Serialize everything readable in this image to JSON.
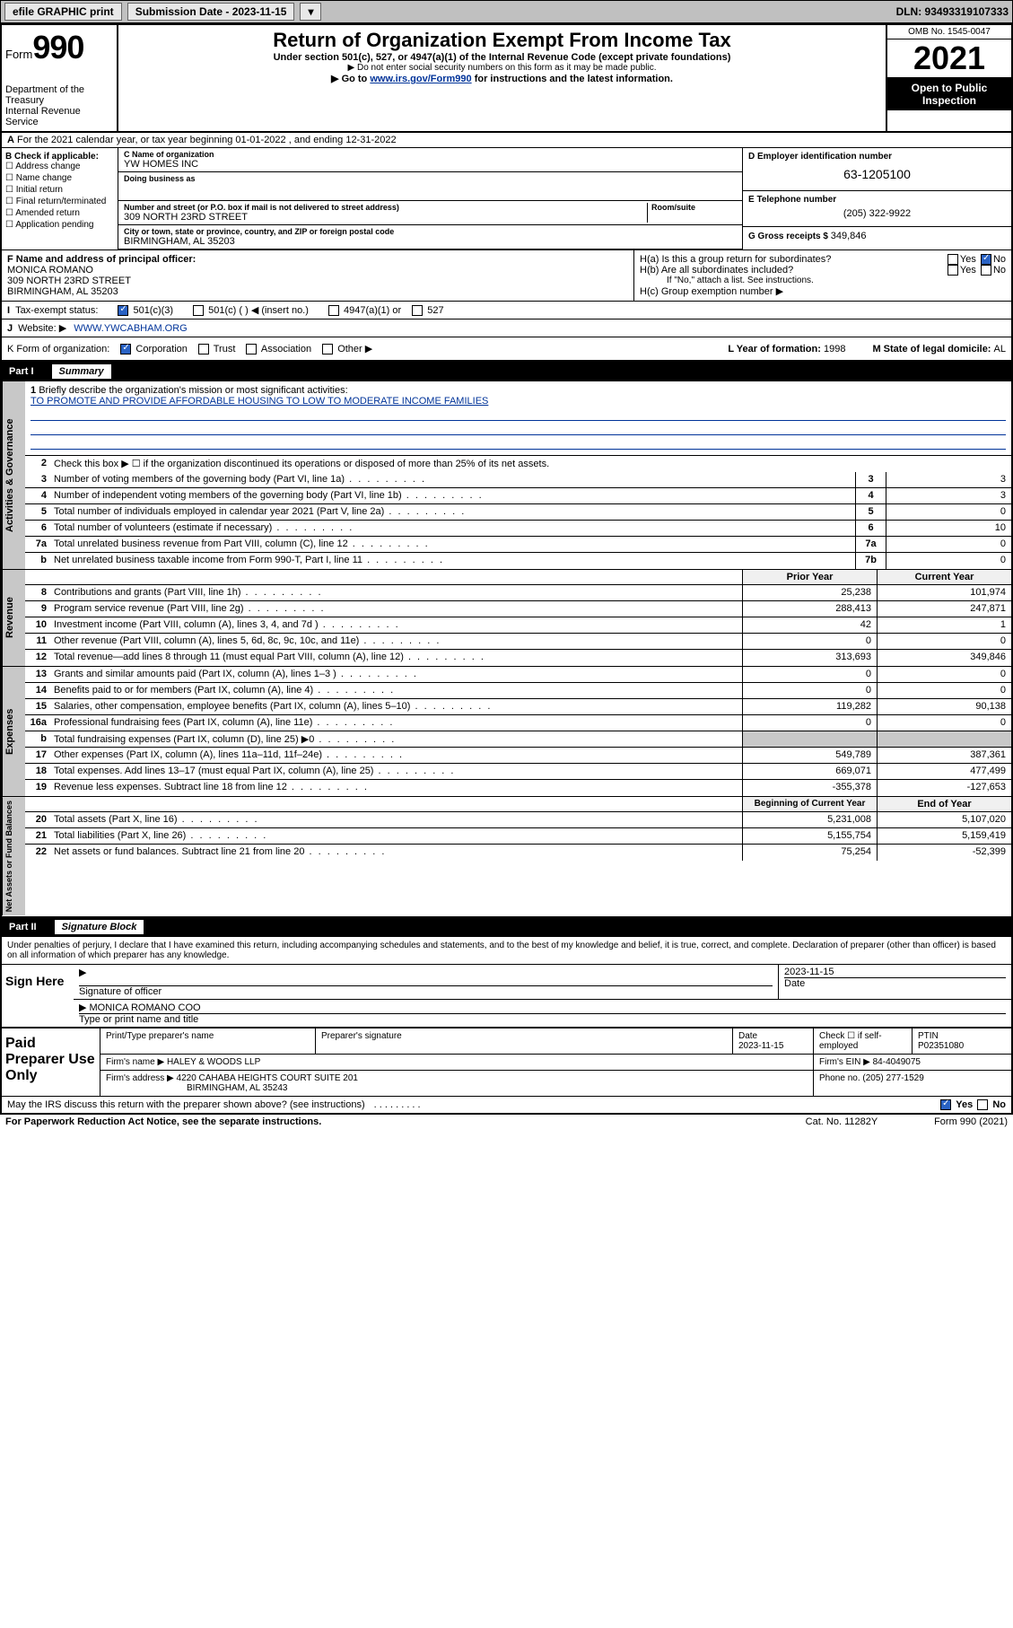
{
  "topbar": {
    "efile": "efile GRAPHIC print",
    "subdate_label": "Submission Date - 2023-11-15",
    "dln": "DLN: 93493319107333"
  },
  "header": {
    "form_prefix": "Form",
    "form_num": "990",
    "dept": "Department of the Treasury",
    "irs": "Internal Revenue Service",
    "title": "Return of Organization Exempt From Income Tax",
    "sub1": "Under section 501(c), 527, or 4947(a)(1) of the Internal Revenue Code (except private foundations)",
    "sub2": "▶ Do not enter social security numbers on this form as it may be made public.",
    "sub3_pre": "▶ Go to ",
    "sub3_link": "www.irs.gov/Form990",
    "sub3_post": " for instructions and the latest information.",
    "omb": "OMB No. 1545-0047",
    "year": "2021",
    "open": "Open to Public Inspection"
  },
  "rowA": "For the 2021 calendar year, or tax year beginning 01-01-2022    , and ending 12-31-2022",
  "sectionB": {
    "lbl": "B Check if applicable:",
    "items": [
      "Address change",
      "Name change",
      "Initial return",
      "Final return/terminated",
      "Amended return",
      "Application pending"
    ],
    "c_lbl": "C Name of organization",
    "c_name": "YW HOMES INC",
    "dba_lbl": "Doing business as",
    "addr_lbl": "Number and street (or P.O. box if mail is not delivered to street address)",
    "room_lbl": "Room/suite",
    "addr": "309 NORTH 23RD STREET",
    "city_lbl": "City or town, state or province, country, and ZIP or foreign postal code",
    "city": "BIRMINGHAM, AL  35203",
    "d_lbl": "D Employer identification number",
    "ein": "63-1205100",
    "e_lbl": "E Telephone number",
    "phone": "(205) 322-9922",
    "g_lbl": "G Gross receipts $ ",
    "g_val": "349,846"
  },
  "sectionF": {
    "lbl": "F  Name and address of principal officer:",
    "name": "MONICA ROMANO",
    "addr1": "309 NORTH 23RD STREET",
    "addr2": "BIRMINGHAM, AL  35203"
  },
  "sectionH": {
    "ha": "H(a)  Is this a group return for subordinates?",
    "hb": "H(b)  Are all subordinates included?",
    "hb_note": "If \"No,\" attach a list. See instructions.",
    "hc": "H(c)  Group exemption number ▶",
    "yes": "Yes",
    "no": "No"
  },
  "rowI": {
    "lbl": "Tax-exempt status:",
    "opts": [
      "501(c)(3)",
      "501(c) (  ) ◀ (insert no.)",
      "4947(a)(1) or",
      "527"
    ]
  },
  "rowJ": {
    "lbl": "Website: ▶",
    "val": "WWW.YWCABHAM.ORG"
  },
  "rowK": {
    "lbl": "K Form of organization:",
    "opts": [
      "Corporation",
      "Trust",
      "Association",
      "Other ▶"
    ],
    "l_lbl": "L Year of formation: ",
    "l_val": "1998",
    "m_lbl": "M State of legal domicile: ",
    "m_val": "AL"
  },
  "part1": {
    "label": "Part I",
    "title": "Summary"
  },
  "governance": {
    "side": "Activities & Governance",
    "l1": "Briefly describe the organization's mission or most significant activities:",
    "mission": "TO PROMOTE AND PROVIDE AFFORDABLE HOUSING TO LOW TO MODERATE INCOME FAMILIES",
    "l2": "Check this box ▶ ☐  if the organization discontinued its operations or disposed of more than 25% of its net assets.",
    "lines": [
      {
        "n": "3",
        "t": "Number of voting members of the governing body (Part VI, line 1a)",
        "box": "3",
        "v": "3"
      },
      {
        "n": "4",
        "t": "Number of independent voting members of the governing body (Part VI, line 1b)",
        "box": "4",
        "v": "3"
      },
      {
        "n": "5",
        "t": "Total number of individuals employed in calendar year 2021 (Part V, line 2a)",
        "box": "5",
        "v": "0"
      },
      {
        "n": "6",
        "t": "Total number of volunteers (estimate if necessary)",
        "box": "6",
        "v": "10"
      },
      {
        "n": "7a",
        "t": "Total unrelated business revenue from Part VIII, column (C), line 12",
        "box": "7a",
        "v": "0"
      },
      {
        "n": "b",
        "t": "Net unrelated business taxable income from Form 990-T, Part I, line 11",
        "box": "7b",
        "v": "0"
      }
    ]
  },
  "revenue": {
    "side": "Revenue",
    "h1": "Prior Year",
    "h2": "Current Year",
    "lines": [
      {
        "n": "8",
        "t": "Contributions and grants (Part VIII, line 1h)",
        "p": "25,238",
        "c": "101,974"
      },
      {
        "n": "9",
        "t": "Program service revenue (Part VIII, line 2g)",
        "p": "288,413",
        "c": "247,871"
      },
      {
        "n": "10",
        "t": "Investment income (Part VIII, column (A), lines 3, 4, and 7d )",
        "p": "42",
        "c": "1"
      },
      {
        "n": "11",
        "t": "Other revenue (Part VIII, column (A), lines 5, 6d, 8c, 9c, 10c, and 11e)",
        "p": "0",
        "c": "0"
      },
      {
        "n": "12",
        "t": "Total revenue—add lines 8 through 11 (must equal Part VIII, column (A), line 12)",
        "p": "313,693",
        "c": "349,846"
      }
    ]
  },
  "expenses": {
    "side": "Expenses",
    "lines": [
      {
        "n": "13",
        "t": "Grants and similar amounts paid (Part IX, column (A), lines 1–3 )",
        "p": "0",
        "c": "0"
      },
      {
        "n": "14",
        "t": "Benefits paid to or for members (Part IX, column (A), line 4)",
        "p": "0",
        "c": "0"
      },
      {
        "n": "15",
        "t": "Salaries, other compensation, employee benefits (Part IX, column (A), lines 5–10)",
        "p": "119,282",
        "c": "90,138"
      },
      {
        "n": "16a",
        "t": "Professional fundraising fees (Part IX, column (A), line 11e)",
        "p": "0",
        "c": "0"
      },
      {
        "n": "b",
        "t": "Total fundraising expenses (Part IX, column (D), line 25) ▶0",
        "p": "",
        "c": "",
        "gray": true
      },
      {
        "n": "17",
        "t": "Other expenses (Part IX, column (A), lines 11a–11d, 11f–24e)",
        "p": "549,789",
        "c": "387,361"
      },
      {
        "n": "18",
        "t": "Total expenses. Add lines 13–17 (must equal Part IX, column (A), line 25)",
        "p": "669,071",
        "c": "477,499"
      },
      {
        "n": "19",
        "t": "Revenue less expenses. Subtract line 18 from line 12",
        "p": "-355,378",
        "c": "-127,653"
      }
    ]
  },
  "netassets": {
    "side": "Net Assets or Fund Balances",
    "h1": "Beginning of Current Year",
    "h2": "End of Year",
    "lines": [
      {
        "n": "20",
        "t": "Total assets (Part X, line 16)",
        "p": "5,231,008",
        "c": "5,107,020"
      },
      {
        "n": "21",
        "t": "Total liabilities (Part X, line 26)",
        "p": "5,155,754",
        "c": "5,159,419"
      },
      {
        "n": "22",
        "t": "Net assets or fund balances. Subtract line 21 from line 20",
        "p": "75,254",
        "c": "-52,399"
      }
    ]
  },
  "part2": {
    "label": "Part II",
    "title": "Signature Block"
  },
  "sig": {
    "decl": "Under penalties of perjury, I declare that I have examined this return, including accompanying schedules and statements, and to the best of my knowledge and belief, it is true, correct, and complete. Declaration of preparer (other than officer) is based on all information of which preparer has any knowledge.",
    "sign_here": "Sign Here",
    "sig_officer": "Signature of officer",
    "date": "Date",
    "date_val": "2023-11-15",
    "name_title": "MONICA ROMANO  COO",
    "name_lbl": "Type or print name and title"
  },
  "paid": {
    "title": "Paid Preparer Use Only",
    "h1": "Print/Type preparer's name",
    "h2": "Preparer's signature",
    "h3": "Date",
    "date": "2023-11-15",
    "h4": "Check ☐ if self-employed",
    "h5": "PTIN",
    "ptin": "P02351080",
    "firm_lbl": "Firm's name     ▶",
    "firm": "HALEY & WOODS LLP",
    "ein_lbl": "Firm's EIN ▶",
    "ein": "84-4049075",
    "addr_lbl": "Firm's address ▶",
    "addr1": "4220 CAHABA HEIGHTS COURT SUITE 201",
    "addr2": "BIRMINGHAM, AL  35243",
    "phone_lbl": "Phone no.",
    "phone": "(205) 277-1529"
  },
  "footer": {
    "q": "May the IRS discuss this return with the preparer shown above? (see instructions)",
    "yes": "Yes",
    "no": "No",
    "paperwork": "For Paperwork Reduction Act Notice, see the separate instructions.",
    "cat": "Cat. No. 11282Y",
    "form": "Form 990 (2021)"
  }
}
